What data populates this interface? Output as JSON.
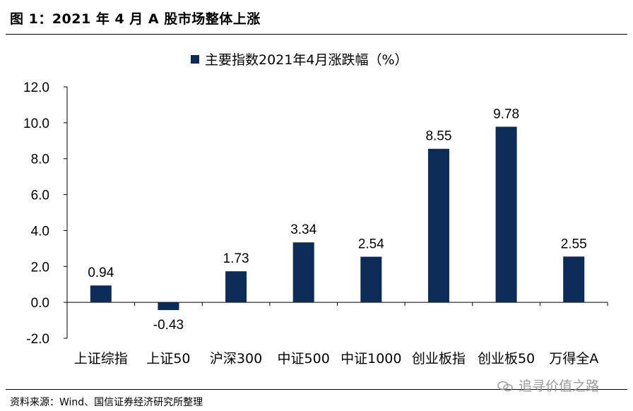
{
  "figure_title": "图 1：2021 年 4 月 A 股市场整体上涨",
  "source_note": "资料来源：Wind、国信证券经济研究所整理",
  "watermark_text": "追寻价值之路",
  "colors": {
    "bar": "#0d2b57",
    "axis": "#000000"
  },
  "chart_data": {
    "type": "bar",
    "categories": [
      "上证综指",
      "上证50",
      "沪深300",
      "中证500",
      "中证1000",
      "创业板指",
      "创业板50",
      "万得全A"
    ],
    "series": [
      {
        "name": "主要指数2021年4月涨跌幅（%）",
        "values": [
          0.94,
          -0.43,
          1.73,
          3.34,
          2.54,
          8.55,
          9.78,
          2.55
        ],
        "labels": [
          "0.94",
          "-0.43",
          "1.73",
          "3.34",
          "2.54",
          "8.55",
          "9.78",
          "2.55"
        ]
      }
    ],
    "ylim": [
      -2.0,
      12.0
    ],
    "yticks": [
      "12.0",
      "10.0",
      "8.0",
      "6.0",
      "4.0",
      "2.0",
      "0.0",
      "-2.0"
    ],
    "ytick_values": [
      12,
      10,
      8,
      6,
      4,
      2,
      0,
      -2
    ],
    "legend_position": "top-center",
    "grid": false
  }
}
